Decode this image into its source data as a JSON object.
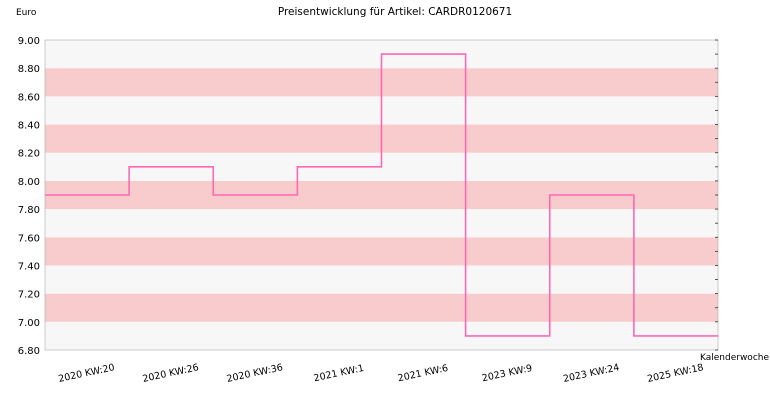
{
  "chart_data": {
    "type": "line",
    "step": true,
    "title": "Preisentwicklung für Artikel: CARDR0120671",
    "ylabel": "Euro",
    "xlabel": "Kalenderwoche",
    "ylim": [
      6.8,
      9.0
    ],
    "yticks": [
      "6.80",
      "7.00",
      "7.20",
      "7.40",
      "7.60",
      "7.80",
      "8.00",
      "8.20",
      "8.40",
      "8.60",
      "8.80",
      "9.00"
    ],
    "categories": [
      "2020 KW:20",
      "2020 KW:26",
      "2020 KW:36",
      "2021 KW:1",
      "2021 KW:6",
      "2023 KW:9",
      "2023 KW:24",
      "2025 KW:18"
    ],
    "values": [
      7.9,
      8.1,
      7.9,
      8.1,
      8.9,
      6.9,
      7.9,
      6.9
    ],
    "grid": "alternating horizontal bands",
    "colors": {
      "line": "#ff69b4",
      "band_light": "#f7f7f7",
      "band_pink": "#f8cccc",
      "frame": "#999999"
    }
  }
}
